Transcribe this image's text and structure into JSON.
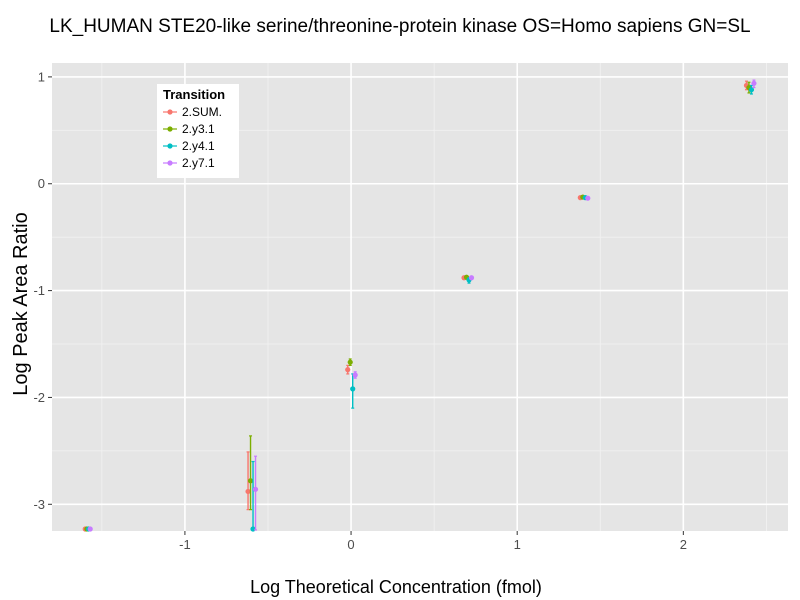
{
  "chart_data": {
    "type": "scatter",
    "title": "LK_HUMAN STE20-like serine/threonine-protein kinase OS=Homo sapiens GN=SL",
    "xlabel": "Log Theoretical Concentration (fmol)",
    "ylabel": "Log Peak Area Ratio",
    "xlim": [
      -1.8,
      2.63
    ],
    "ylim": [
      -3.25,
      1.13
    ],
    "x_ticks": [
      -1,
      0,
      1,
      2
    ],
    "x_tick_labels": [
      "-1",
      "0",
      "1",
      "2"
    ],
    "y_ticks": [
      -3,
      -2,
      -1,
      0,
      1
    ],
    "y_tick_labels": [
      "-3",
      "-2",
      "-1",
      "0",
      "1"
    ],
    "grid": true,
    "legend": {
      "title": "Transition",
      "position": "top-left"
    },
    "series": [
      {
        "name": "2.SUM.",
        "color": "#F8766D",
        "points": [
          {
            "x": -1.6,
            "y": -3.24,
            "lo": -3.24,
            "hi": -3.24
          },
          {
            "x": -0.62,
            "y": -2.88,
            "lo": -3.05,
            "hi": -2.51
          },
          {
            "x": -0.02,
            "y": -1.74,
            "lo": -1.78,
            "hi": -1.7
          },
          {
            "x": 0.68,
            "y": -0.88,
            "lo": -0.89,
            "hi": -0.87
          },
          {
            "x": 1.38,
            "y": -0.13,
            "lo": -0.14,
            "hi": -0.12
          },
          {
            "x": 2.38,
            "y": 0.92,
            "lo": 0.88,
            "hi": 0.96
          }
        ]
      },
      {
        "name": "2.y3.1",
        "color": "#7CAE00",
        "points": [
          {
            "x": -1.59,
            "y": -3.24,
            "lo": -3.24,
            "hi": -3.24
          },
          {
            "x": -0.605,
            "y": -2.78,
            "lo": -3.05,
            "hi": -2.36
          },
          {
            "x": -0.005,
            "y": -1.67,
            "lo": -1.7,
            "hi": -1.64
          },
          {
            "x": 0.695,
            "y": -0.875,
            "lo": -0.885,
            "hi": -0.865
          },
          {
            "x": 1.395,
            "y": -0.125,
            "lo": -0.135,
            "hi": -0.115
          },
          {
            "x": 2.395,
            "y": 0.9,
            "lo": 0.85,
            "hi": 0.95
          }
        ]
      },
      {
        "name": "2.y4.1",
        "color": "#00BFC4",
        "points": [
          {
            "x": -1.58,
            "y": -3.24,
            "lo": -3.24,
            "hi": -3.24
          },
          {
            "x": -0.59,
            "y": -3.24,
            "lo": -3.24,
            "hi": -2.6
          },
          {
            "x": 0.01,
            "y": -1.92,
            "lo": -2.1,
            "hi": -1.78
          },
          {
            "x": 0.71,
            "y": -0.9,
            "lo": -0.93,
            "hi": -0.88
          },
          {
            "x": 1.41,
            "y": -0.13,
            "lo": -0.14,
            "hi": -0.12
          },
          {
            "x": 2.41,
            "y": 0.88,
            "lo": 0.84,
            "hi": 0.92
          }
        ]
      },
      {
        "name": "2.y7.1",
        "color": "#C77CFF",
        "points": [
          {
            "x": -1.57,
            "y": -3.24,
            "lo": -3.24,
            "hi": -3.24
          },
          {
            "x": -0.575,
            "y": -2.86,
            "lo": -3.24,
            "hi": -2.55
          },
          {
            "x": 0.025,
            "y": -1.79,
            "lo": -1.82,
            "hi": -1.76
          },
          {
            "x": 0.725,
            "y": -0.88,
            "lo": -0.89,
            "hi": -0.87
          },
          {
            "x": 1.425,
            "y": -0.135,
            "lo": -0.145,
            "hi": -0.125
          },
          {
            "x": 2.425,
            "y": 0.94,
            "lo": 0.9,
            "hi": 0.97
          }
        ]
      }
    ]
  }
}
